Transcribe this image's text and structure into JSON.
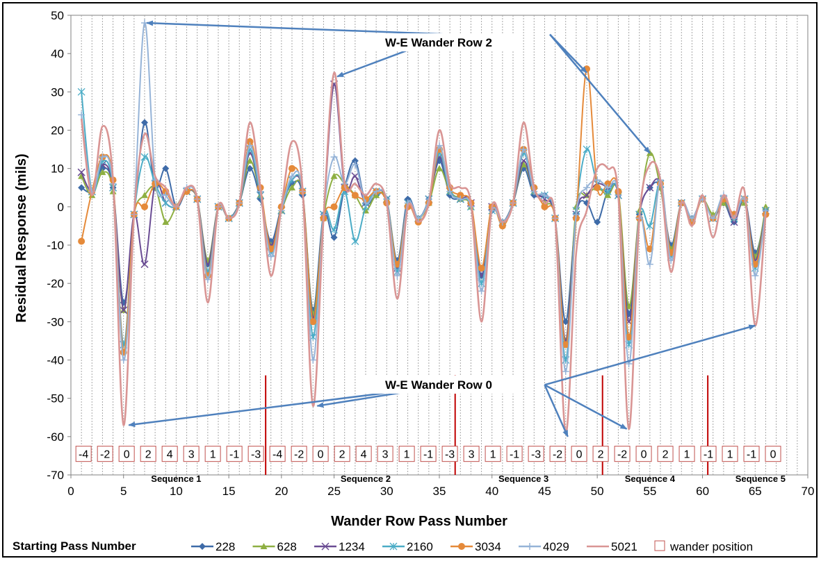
{
  "chart_data": {
    "type": "line",
    "title": "",
    "xlabel": "Wander Row Pass Number",
    "ylabel": "Residual Response (mils)",
    "xlim": [
      0,
      70
    ],
    "ylim": [
      -70,
      50
    ],
    "x_ticks": [
      0,
      5,
      10,
      15,
      20,
      25,
      30,
      35,
      40,
      45,
      50,
      55,
      60,
      65,
      70
    ],
    "y_ticks": [
      50,
      40,
      30,
      20,
      10,
      0,
      -10,
      -20,
      -30,
      -40,
      -50,
      -60,
      -70
    ],
    "grid": "vertical dashed",
    "legend_title": "Starting Pass Number",
    "legend_position": "bottom",
    "series": [
      {
        "name": "228",
        "color": "#3E6BA8",
        "marker": "diamond",
        "x": [
          1,
          2,
          3,
          4,
          5,
          6,
          7,
          8,
          9,
          10,
          11,
          12,
          13,
          14,
          15,
          16,
          17,
          18,
          19,
          20,
          21,
          22,
          23,
          24,
          25,
          26,
          27,
          28,
          29,
          30,
          31,
          32,
          33,
          34,
          35,
          36,
          37,
          38,
          39,
          40,
          41,
          42,
          43,
          44,
          45,
          46,
          47,
          48,
          49,
          50,
          51,
          52,
          53,
          54,
          55,
          56,
          57,
          58,
          59,
          60,
          61,
          62,
          63,
          64,
          65,
          66
        ],
        "y": [
          5,
          4,
          10,
          5,
          -25,
          -2,
          22,
          5,
          10,
          0,
          4,
          2,
          -15,
          0,
          -3,
          1,
          10,
          2,
          -9,
          0,
          6,
          3,
          -27,
          -2,
          -8,
          5,
          12,
          1,
          3,
          2,
          -14,
          2,
          -3,
          2,
          12,
          3,
          2,
          1,
          -18,
          -1,
          -4,
          1,
          10,
          3,
          3,
          -3,
          -30,
          -2,
          1,
          -4,
          4,
          3,
          -28,
          -2,
          5,
          5,
          -10,
          1,
          -3,
          2,
          -3,
          1,
          -4,
          2,
          -12,
          -1
        ]
      },
      {
        "name": "628",
        "color": "#8EAF42",
        "marker": "triangle",
        "x": [
          1,
          2,
          3,
          4,
          5,
          6,
          7,
          8,
          9,
          10,
          11,
          12,
          13,
          14,
          15,
          16,
          17,
          18,
          19,
          20,
          21,
          22,
          23,
          24,
          25,
          26,
          27,
          28,
          29,
          30,
          31,
          32,
          33,
          34,
          35,
          36,
          37,
          38,
          39,
          40,
          41,
          42,
          43,
          44,
          45,
          46,
          47,
          48,
          49,
          50,
          51,
          52,
          53,
          54,
          55,
          56,
          57,
          58,
          59,
          60,
          61,
          62,
          63,
          64,
          65,
          66
        ],
        "y": [
          8,
          3,
          9,
          4,
          -27,
          -2,
          3,
          5,
          -4,
          0,
          4,
          2,
          -14,
          0,
          -3,
          1,
          12,
          3,
          -10,
          -1,
          5,
          4,
          -28,
          -3,
          8,
          6,
          3,
          -1,
          3,
          2,
          -15,
          1,
          -3,
          1,
          10,
          4,
          2,
          0,
          -16,
          0,
          -4,
          1,
          11,
          4,
          1,
          -3,
          -35,
          0,
          3,
          5,
          3,
          4,
          -26,
          -1,
          14,
          5,
          -11,
          1,
          -3,
          2,
          -2,
          1,
          -3,
          1,
          -13,
          0
        ]
      },
      {
        "name": "1234",
        "color": "#6A4C93",
        "marker": "x",
        "x": [
          1,
          2,
          3,
          4,
          5,
          6,
          7,
          8,
          9,
          10,
          11,
          12,
          13,
          14,
          15,
          16,
          17,
          18,
          19,
          20,
          21,
          22,
          23,
          24,
          25,
          26,
          27,
          28,
          29,
          30,
          31,
          32,
          33,
          34,
          35,
          36,
          37,
          38,
          39,
          40,
          41,
          42,
          43,
          44,
          45,
          46,
          47,
          48,
          49,
          50,
          51,
          52,
          53,
          54,
          55,
          56,
          57,
          58,
          59,
          60,
          61,
          62,
          63,
          64,
          65,
          66
        ],
        "y": [
          9,
          4,
          11,
          5,
          -27,
          -2,
          -15,
          6,
          1,
          0,
          4,
          2,
          -15,
          0,
          -3,
          1,
          14,
          3,
          -10,
          -1,
          7,
          4,
          -29,
          -2,
          32,
          5,
          8,
          1,
          4,
          2,
          -16,
          1,
          -3,
          2,
          13,
          4,
          2,
          1,
          -18,
          0,
          -4,
          1,
          12,
          4,
          2,
          -3,
          -35,
          -2,
          3,
          6,
          5,
          3,
          -30,
          -2,
          5,
          6,
          -12,
          1,
          -3,
          2,
          -3,
          2,
          -4,
          2,
          -14,
          -1
        ]
      },
      {
        "name": "2160",
        "color": "#4BACC6",
        "marker": "asterisk",
        "x": [
          1,
          2,
          3,
          4,
          5,
          6,
          7,
          8,
          9,
          10,
          11,
          12,
          13,
          14,
          15,
          16,
          17,
          18,
          19,
          20,
          21,
          22,
          23,
          24,
          25,
          26,
          27,
          28,
          29,
          30,
          31,
          32,
          33,
          34,
          35,
          36,
          37,
          38,
          39,
          40,
          41,
          42,
          43,
          44,
          45,
          46,
          47,
          48,
          49,
          50,
          51,
          52,
          53,
          54,
          55,
          56,
          57,
          58,
          59,
          60,
          61,
          62,
          63,
          64,
          65,
          66
        ],
        "y": [
          30,
          4,
          12,
          5,
          -36,
          -2,
          13,
          6,
          1,
          0,
          4,
          2,
          -17,
          0,
          -3,
          1,
          15,
          3,
          -12,
          -1,
          7,
          4,
          -34,
          -2,
          -6,
          4,
          -9,
          0,
          4,
          2,
          -17,
          1,
          -3,
          2,
          14,
          4,
          2,
          0,
          -20,
          -1,
          -4,
          1,
          14,
          4,
          3,
          -3,
          -40,
          -1,
          15,
          6,
          4,
          3,
          -36,
          -2,
          -5,
          6,
          -13,
          1,
          -3,
          2,
          -3,
          2,
          -3,
          2,
          -16,
          -1
        ]
      },
      {
        "name": "3034",
        "color": "#E58A3A",
        "marker": "circle",
        "x": [
          1,
          2,
          3,
          4,
          5,
          6,
          7,
          8,
          9,
          10,
          11,
          12,
          13,
          14,
          15,
          16,
          17,
          18,
          19,
          20,
          21,
          22,
          23,
          24,
          25,
          26,
          27,
          28,
          29,
          30,
          31,
          32,
          33,
          34,
          35,
          36,
          37,
          38,
          39,
          40,
          41,
          42,
          43,
          44,
          45,
          46,
          47,
          48,
          49,
          50,
          51,
          52,
          53,
          54,
          55,
          56,
          57,
          58,
          59,
          60,
          61,
          62,
          63,
          64,
          65,
          66
        ],
        "y": [
          -9,
          4,
          13,
          7,
          -38,
          -2,
          0,
          6,
          4,
          0,
          4,
          2,
          -18,
          0,
          -3,
          1,
          17,
          5,
          -11,
          0,
          10,
          4,
          -30,
          -3,
          0,
          5,
          3,
          2,
          4,
          1,
          -15,
          0,
          -4,
          1,
          15,
          5,
          3,
          1,
          -16,
          0,
          -5,
          1,
          15,
          5,
          0,
          -3,
          -36,
          -3,
          36,
          5,
          6,
          4,
          -34,
          -3,
          -11,
          6,
          -12,
          1,
          -4,
          2,
          -3,
          2,
          -2,
          2,
          -15,
          -2
        ]
      },
      {
        "name": "4029",
        "color": "#95B3D7",
        "marker": "plus",
        "x": [
          1,
          2,
          3,
          4,
          5,
          6,
          7,
          8,
          9,
          10,
          11,
          12,
          13,
          14,
          15,
          16,
          17,
          18,
          19,
          20,
          21,
          22,
          23,
          24,
          25,
          26,
          27,
          28,
          29,
          30,
          31,
          32,
          33,
          34,
          35,
          36,
          37,
          38,
          39,
          40,
          41,
          42,
          43,
          44,
          45,
          46,
          47,
          48,
          49,
          50,
          51,
          52,
          53,
          54,
          55,
          56,
          57,
          58,
          59,
          60,
          61,
          62,
          63,
          64,
          65,
          66
        ],
        "y": [
          24,
          4,
          13,
          6,
          -40,
          -2,
          48,
          7,
          3,
          0,
          5,
          2,
          -19,
          0,
          -3,
          1,
          16,
          4,
          -13,
          -1,
          8,
          4,
          -40,
          -2,
          13,
          6,
          11,
          1,
          4,
          2,
          -18,
          1,
          -3,
          2,
          16,
          4,
          2,
          0,
          -22,
          -1,
          -4,
          1,
          15,
          4,
          3,
          -3,
          -43,
          -2,
          5,
          7,
          5,
          3,
          -41,
          -3,
          -15,
          7,
          -14,
          1,
          -3,
          2,
          -3,
          3,
          -3,
          2,
          -18,
          -1
        ]
      },
      {
        "name": "5021",
        "color": "#D99594",
        "marker": "none",
        "x": [
          1,
          2,
          3,
          4,
          5,
          6,
          7,
          8,
          9,
          10,
          11,
          12,
          13,
          14,
          15,
          16,
          17,
          18,
          19,
          20,
          21,
          22,
          23,
          24,
          25,
          26,
          27,
          28,
          29,
          30,
          31,
          32,
          33,
          34,
          35,
          36,
          37,
          38,
          39,
          40,
          41,
          42,
          43,
          44,
          45,
          46,
          47,
          48,
          49,
          50,
          51,
          52,
          53,
          54,
          55,
          56,
          57,
          58,
          59,
          60,
          61,
          62,
          63,
          64,
          65,
          66
        ],
        "y": [
          23,
          3,
          21,
          7,
          -57,
          -2,
          19,
          8,
          5,
          0,
          5,
          2,
          -25,
          0,
          -3,
          1,
          22,
          5,
          -18,
          0,
          17,
          5,
          -52,
          -3,
          35,
          6,
          6,
          3,
          6,
          1,
          -24,
          0,
          -4,
          1,
          20,
          6,
          5,
          1,
          -30,
          0,
          -4,
          1,
          22,
          5,
          1,
          -3,
          -59,
          -12,
          -1,
          10,
          10,
          3,
          -58,
          -3,
          11,
          7,
          -17,
          1,
          -5,
          3,
          -8,
          3,
          -3,
          4,
          -31,
          -2
        ]
      }
    ],
    "wander_positions": [
      "-4",
      "-2",
      "0",
      "2",
      "4",
      "3",
      "1",
      "-1",
      "-3",
      "-4",
      "-2",
      "0",
      "2",
      "4",
      "3",
      "1",
      "-1",
      "-3",
      "3",
      "1",
      "-1",
      "-3",
      "-2",
      "0",
      "2",
      "-2",
      "0",
      "2",
      "1",
      "-1",
      "1",
      "-1",
      "0"
    ],
    "sequence_dividers": [
      18.5,
      36.5,
      50.5,
      60.5
    ],
    "sequences": [
      {
        "label": "Sequence 1",
        "x": 10
      },
      {
        "label": "Sequence 2",
        "x": 28
      },
      {
        "label": "Sequence 3",
        "x": 43
      },
      {
        "label": "Sequence 4",
        "x": 55
      },
      {
        "label": "Sequence 5",
        "x": 65.5
      }
    ],
    "annotations": [
      {
        "text": "W-E Wander Row 2"
      },
      {
        "text": "W-E Wander Row 0"
      }
    ],
    "wander_legend_label": "wander position"
  }
}
